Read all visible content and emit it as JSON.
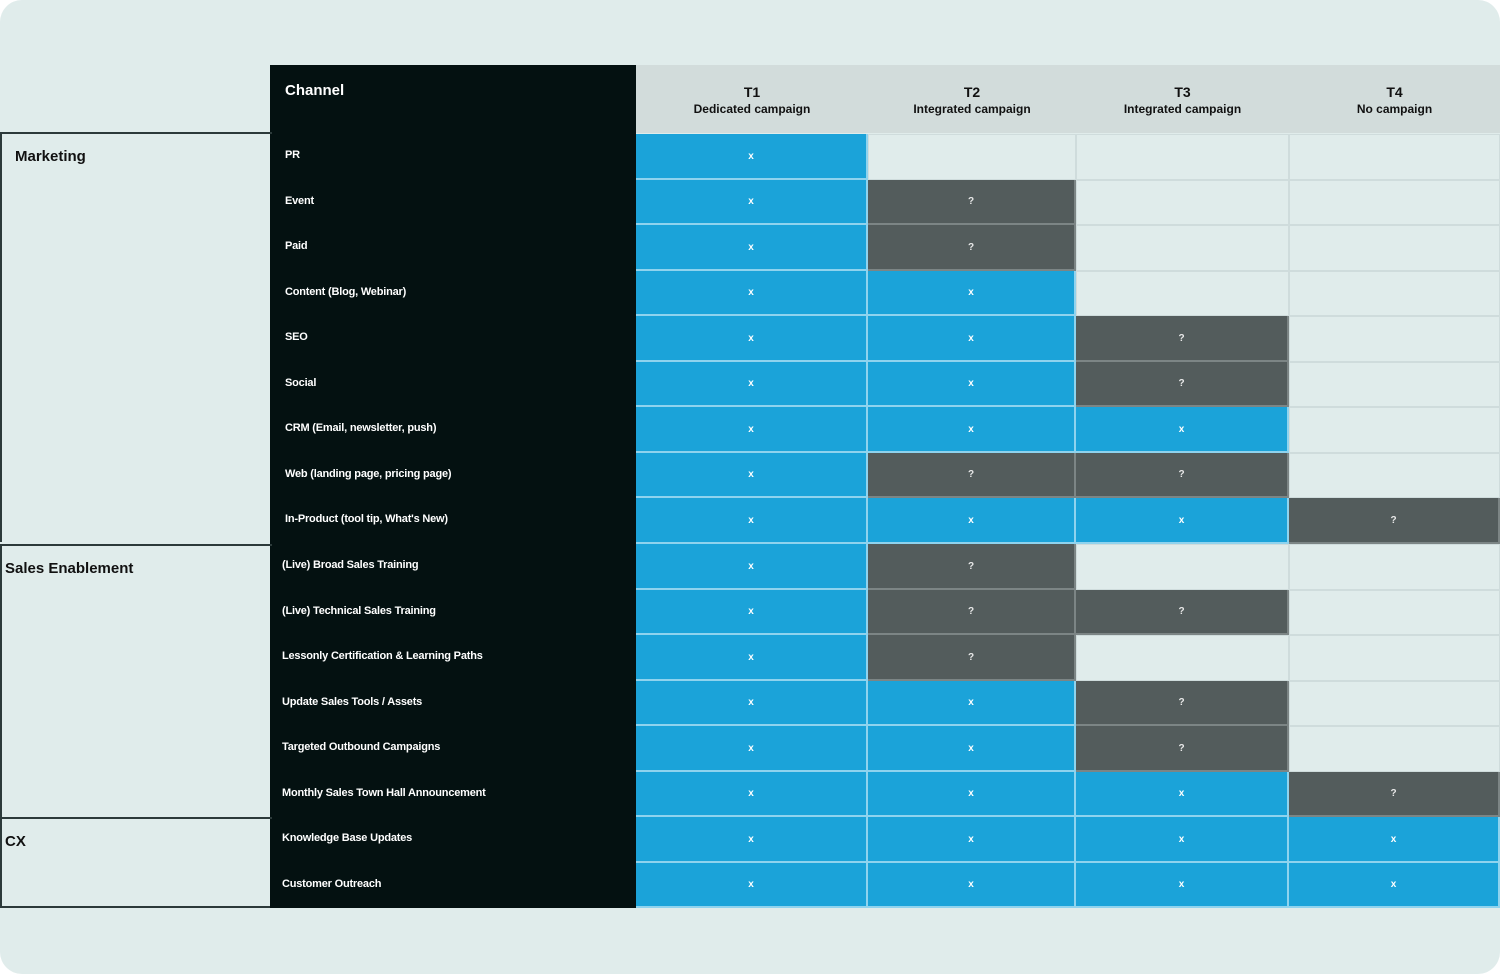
{
  "header": {
    "channel_label": "Channel",
    "tiers": [
      {
        "name": "T1",
        "desc": "Dedicated campaign"
      },
      {
        "name": "T2",
        "desc": "Integrated campaign"
      },
      {
        "name": "T3",
        "desc": "Integrated campaign"
      },
      {
        "name": "T4",
        "desc": "No campaign"
      }
    ]
  },
  "groups": [
    {
      "label": "Marketing",
      "start_row": 0,
      "row_count": 9
    },
    {
      "label": "Sales Enablement",
      "start_row": 9,
      "row_count": 6
    },
    {
      "label": "CX",
      "start_row": 15,
      "row_count": 2
    }
  ],
  "rows": [
    {
      "channel": "PR",
      "cells": [
        "x",
        "",
        "",
        ""
      ]
    },
    {
      "channel": "Event",
      "cells": [
        "x",
        "?",
        "",
        ""
      ]
    },
    {
      "channel": "Paid",
      "cells": [
        "x",
        "?",
        "",
        ""
      ]
    },
    {
      "channel": "Content (Blog, Webinar)",
      "cells": [
        "x",
        "x",
        "",
        ""
      ]
    },
    {
      "channel": "SEO",
      "cells": [
        "x",
        "x",
        "?",
        ""
      ]
    },
    {
      "channel": "Social",
      "cells": [
        "x",
        "x",
        "?",
        ""
      ]
    },
    {
      "channel": "CRM (Email, newsletter, push)",
      "cells": [
        "x",
        "x",
        "x",
        ""
      ]
    },
    {
      "channel": "Web (landing page, pricing page)",
      "cells": [
        "x",
        "?",
        "?",
        ""
      ]
    },
    {
      "channel": "In-Product (tool tip, What's New)",
      "cells": [
        "x",
        "x",
        "x",
        "?"
      ]
    },
    {
      "channel": "(Live) Broad Sales Training",
      "cells": [
        "x",
        "?",
        "",
        ""
      ]
    },
    {
      "channel": "(Live) Technical Sales Training",
      "cells": [
        "x",
        "?",
        "?",
        ""
      ]
    },
    {
      "channel": "Lessonly Certification & Learning Paths",
      "cells": [
        "x",
        "?",
        "",
        ""
      ]
    },
    {
      "channel": "Update Sales Tools / Assets",
      "cells": [
        "x",
        "x",
        "?",
        ""
      ]
    },
    {
      "channel": "Targeted Outbound Campaigns",
      "cells": [
        "x",
        "x",
        "?",
        ""
      ]
    },
    {
      "channel": "Monthly Sales Town Hall Announcement",
      "cells": [
        "x",
        "x",
        "x",
        "?"
      ]
    },
    {
      "channel": "Knowledge Base Updates",
      "cells": [
        "x",
        "x",
        "x",
        "x"
      ]
    },
    {
      "channel": "Customer Outreach",
      "cells": [
        "x",
        "x",
        "x",
        "x"
      ]
    }
  ],
  "colors": {
    "confirmed": "#1ba3d9",
    "possible": "#535c5c",
    "channel_bg": "#041111",
    "header_bg": "#d2dcdb",
    "page_bg": "#e0eceb"
  }
}
